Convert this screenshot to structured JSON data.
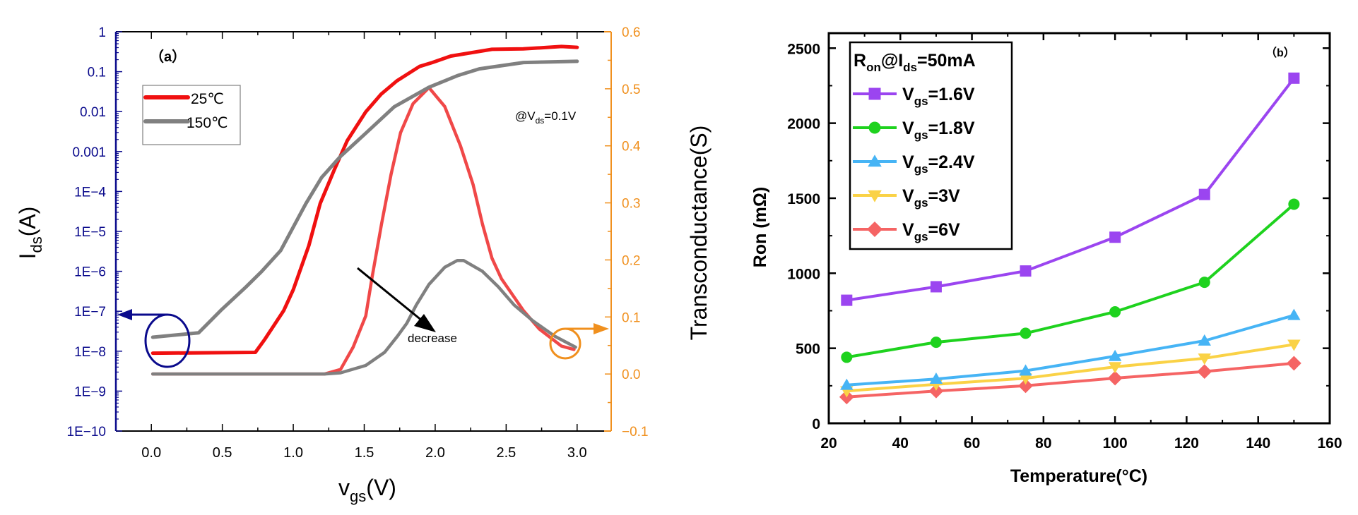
{
  "chart_data": [
    {
      "id": "a",
      "type": "line",
      "panel_label": "（a）",
      "xlabel": {
        "main": "v",
        "sub": "gs",
        "unit": "(V)"
      },
      "ylabel_left": {
        "main": "I",
        "sub": "ds",
        "unit": "(A)"
      },
      "ylabel_right": "Transconductance(S)",
      "x_range": [
        -0.25,
        3.24
      ],
      "x_ticks": [
        0.0,
        0.5,
        1.0,
        1.5,
        2.0,
        2.5,
        3.0
      ],
      "x_tick_labels": [
        "0.0",
        "0.5",
        "1.0",
        "1.5",
        "2.0",
        "2.5",
        "3.0"
      ],
      "y_left_scale": "log",
      "y_left_range": [
        1e-10,
        1
      ],
      "y_left_tick_labels": [
        "1",
        "0.1",
        "0.01",
        "0.001",
        "1E−4",
        "1E−5",
        "1E−6",
        "1E−7",
        "1E−8",
        "1E−9",
        "1E−10"
      ],
      "y_left_tick_exponents": [
        0,
        -1,
        -2,
        -3,
        -4,
        -5,
        -6,
        -7,
        -8,
        -9,
        -10
      ],
      "y_left_color": "#0a0a8c",
      "y_right_range": [
        -0.1,
        0.6
      ],
      "y_right_ticks": [
        0.6,
        0.5,
        0.4,
        0.3,
        0.2,
        0.1,
        0.0,
        -0.1
      ],
      "y_right_tick_labels": [
        "0.6",
        "0.5",
        "0.4",
        "0.3",
        "0.2",
        "0.1",
        "0.0",
        "−0.1"
      ],
      "y_right_color": "#f0901e",
      "annotation_condition": {
        "prefix": "@V",
        "sub": "ds",
        "suffix": "=0.1V"
      },
      "annotation_arrow_text": "decrease",
      "legend": {
        "placement": "top-left",
        "entries": [
          {
            "label": "25℃",
            "color": "#f01010"
          },
          {
            "label": "150℃",
            "color": "#808080"
          }
        ]
      },
      "series": [
        {
          "name": "Ids 25℃",
          "axis": "left",
          "color": "#f01010",
          "x": [
            0.01,
            0.733,
            0.8,
            0.933,
            1.0,
            1.11,
            1.19,
            1.29,
            1.38,
            1.51,
            1.62,
            1.73,
            1.89,
            1.98,
            2.11,
            2.4,
            2.62,
            2.89,
            3.0
          ],
          "log10_y": [
            -8.05,
            -8.03,
            -7.7,
            -6.98,
            -6.46,
            -5.35,
            -4.3,
            -3.45,
            -2.73,
            -2.01,
            -1.56,
            -1.23,
            -0.87,
            -0.77,
            -0.61,
            -0.44,
            -0.43,
            -0.37,
            -0.39
          ]
        },
        {
          "name": "Ids 150℃",
          "axis": "left",
          "color": "#808080",
          "x": [
            0.01,
            0.333,
            0.489,
            0.667,
            0.778,
            0.911,
            1.0,
            1.089,
            1.2,
            1.333,
            1.511,
            1.711,
            1.956,
            2.156,
            2.311,
            2.622,
            3.0
          ],
          "log10_y": [
            -7.65,
            -7.54,
            -6.98,
            -6.39,
            -6.0,
            -5.48,
            -4.89,
            -4.3,
            -3.65,
            -3.12,
            -2.54,
            -1.88,
            -1.39,
            -1.1,
            -0.93,
            -0.77,
            -0.74
          ]
        },
        {
          "name": "gm 25℃",
          "axis": "right",
          "color": "#f04848",
          "x": [
            0.01,
            1.222,
            1.333,
            1.422,
            1.511,
            1.556,
            1.622,
            1.689,
            1.756,
            1.844,
            1.956,
            2.067,
            2.178,
            2.267,
            2.333,
            2.4,
            2.467,
            2.622,
            2.733,
            2.889,
            2.978
          ],
          "y": [
            0.0,
            0.0,
            0.008,
            0.047,
            0.102,
            0.171,
            0.263,
            0.35,
            0.423,
            0.474,
            0.502,
            0.469,
            0.4,
            0.332,
            0.263,
            0.203,
            0.167,
            0.111,
            0.079,
            0.049,
            0.043
          ]
        },
        {
          "name": "gm 150℃",
          "axis": "right",
          "color": "#808080",
          "x": [
            0.01,
            1.222,
            1.333,
            1.511,
            1.644,
            1.733,
            1.8,
            1.867,
            1.956,
            2.067,
            2.156,
            2.2,
            2.333,
            2.444,
            2.556,
            2.689,
            2.844,
            2.989
          ],
          "y": [
            0.0,
            0.0,
            0.002,
            0.015,
            0.038,
            0.066,
            0.089,
            0.121,
            0.157,
            0.187,
            0.199,
            0.199,
            0.18,
            0.153,
            0.121,
            0.093,
            0.066,
            0.047
          ]
        }
      ]
    },
    {
      "id": "b",
      "type": "line",
      "panel_label": "（b）",
      "xlabel": "Temperature(°C)",
      "ylabel": "Ron (mΩ)",
      "x_range": [
        20,
        160
      ],
      "x_ticks": [
        20,
        40,
        60,
        80,
        100,
        120,
        140,
        160
      ],
      "y_range": [
        0,
        2600
      ],
      "y_ticks": [
        0,
        500,
        1000,
        1500,
        2000,
        2500
      ],
      "legend": {
        "placement": "top-left",
        "title": {
          "main": "R",
          "sub1": "on",
          "mid": "@I",
          "sub2": "ds",
          "suffix": "=50mA"
        }
      },
      "categories": [
        25,
        50,
        75,
        100,
        125,
        150
      ],
      "series": [
        {
          "name": "Vgs=1.6V",
          "label_main": "V",
          "label_sub": "gs",
          "label_suffix": "=1.6V",
          "marker": "square",
          "color": "#9b45f0",
          "values": [
            820,
            910,
            1015,
            1240,
            1525,
            2300
          ]
        },
        {
          "name": "Vgs=1.8V",
          "label_main": "V",
          "label_sub": "gs",
          "label_suffix": "=1.8V",
          "marker": "circle",
          "color": "#1ed21e",
          "values": [
            440,
            540,
            600,
            743,
            940,
            1460
          ]
        },
        {
          "name": "Vgs=2.4V",
          "label_main": "V",
          "label_sub": "gs",
          "label_suffix": "=2.4V",
          "marker": "triangle-up",
          "color": "#46b4f5",
          "values": [
            255,
            295,
            350,
            447,
            550,
            720
          ]
        },
        {
          "name": "Vgs=3V",
          "label_main": "V",
          "label_sub": "gs",
          "label_suffix": "=3V",
          "marker": "triangle-down",
          "color": "#fad246",
          "values": [
            215,
            260,
            300,
            376,
            433,
            525
          ]
        },
        {
          "name": "Vgs=6V",
          "label_main": "V",
          "label_sub": "gs",
          "label_suffix": "=6V",
          "marker": "diamond",
          "color": "#f56464",
          "values": [
            175,
            215,
            250,
            301,
            345,
            400
          ]
        }
      ]
    }
  ]
}
